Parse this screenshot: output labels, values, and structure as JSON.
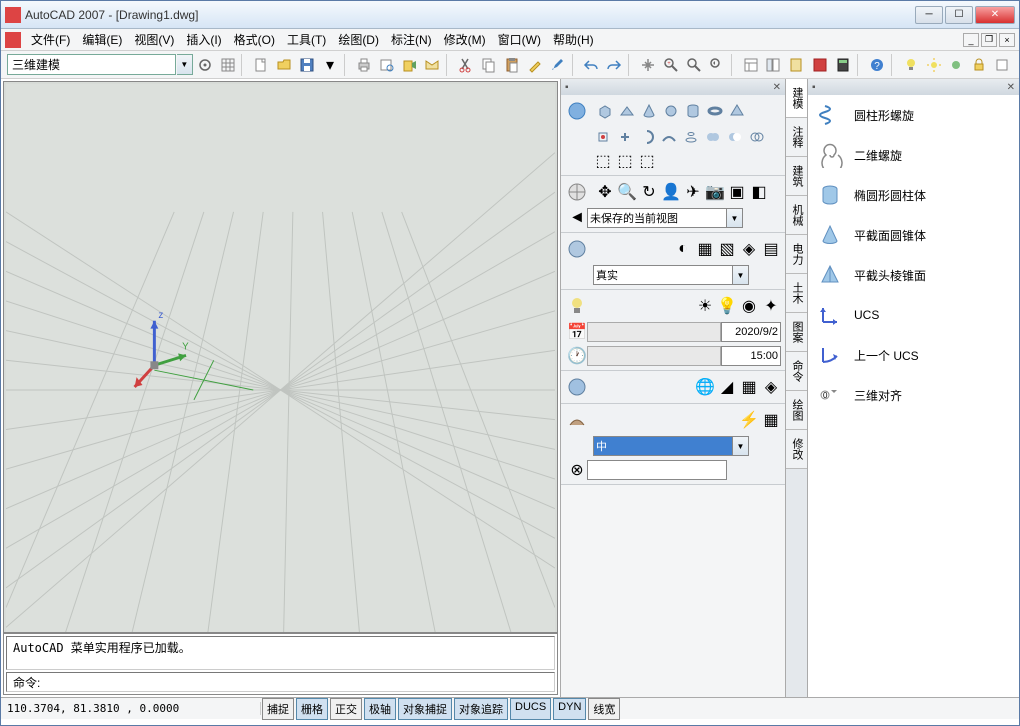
{
  "title": "AutoCAD 2007 - [Drawing1.dwg]",
  "menus": [
    "文件(F)",
    "编辑(E)",
    "视图(V)",
    "插入(I)",
    "格式(O)",
    "工具(T)",
    "绘图(D)",
    "标注(N)",
    "修改(M)",
    "窗口(W)",
    "帮助(H)"
  ],
  "workspace_select": "三维建模",
  "cmd_history": "AutoCAD 菜单实用程序已加载。",
  "cmd_prompt": "命令:",
  "coords": "110.3704, 81.3810 , 0.0000",
  "status_buttons": [
    {
      "label": "捕捉",
      "active": false
    },
    {
      "label": "栅格",
      "active": true
    },
    {
      "label": "正交",
      "active": false
    },
    {
      "label": "极轴",
      "active": true
    },
    {
      "label": "对象捕捉",
      "active": true
    },
    {
      "label": "对象追踪",
      "active": true
    },
    {
      "label": "DUCS",
      "active": true
    },
    {
      "label": "DYN",
      "active": true
    },
    {
      "label": "线宽",
      "active": false
    }
  ],
  "panels": {
    "view_select": "未保存的当前视图",
    "visual_style": "真实",
    "date": "2020/9/2",
    "time": "15:00",
    "material_select": "中"
  },
  "vtabs": [
    "建模",
    "注释",
    "建筑",
    "机械",
    "电力",
    "土木",
    "图案",
    "命令",
    "绘图",
    "修改"
  ],
  "right_items": [
    {
      "label": "圆柱形螺旋",
      "icon": "helix"
    },
    {
      "label": "二维螺旋",
      "icon": "spiral"
    },
    {
      "label": "椭圆形圆柱体",
      "icon": "cylinder"
    },
    {
      "label": "平截面圆锥体",
      "icon": "cone"
    },
    {
      "label": "平截头棱锥面",
      "icon": "pyramid"
    },
    {
      "label": "UCS",
      "icon": "ucs"
    },
    {
      "label": "上一个 UCS",
      "icon": "ucsprev"
    },
    {
      "label": "三维对齐",
      "icon": "align3d"
    }
  ],
  "colors": {
    "titlebar_grad1": "#f5f9fd",
    "titlebar_grad2": "#d6e5f5",
    "viewport_bg": "#dce0dc",
    "grid": "#c8ccc8",
    "axis_x": "#d04040",
    "axis_y": "#40a040",
    "axis_z": "#4060d0"
  }
}
